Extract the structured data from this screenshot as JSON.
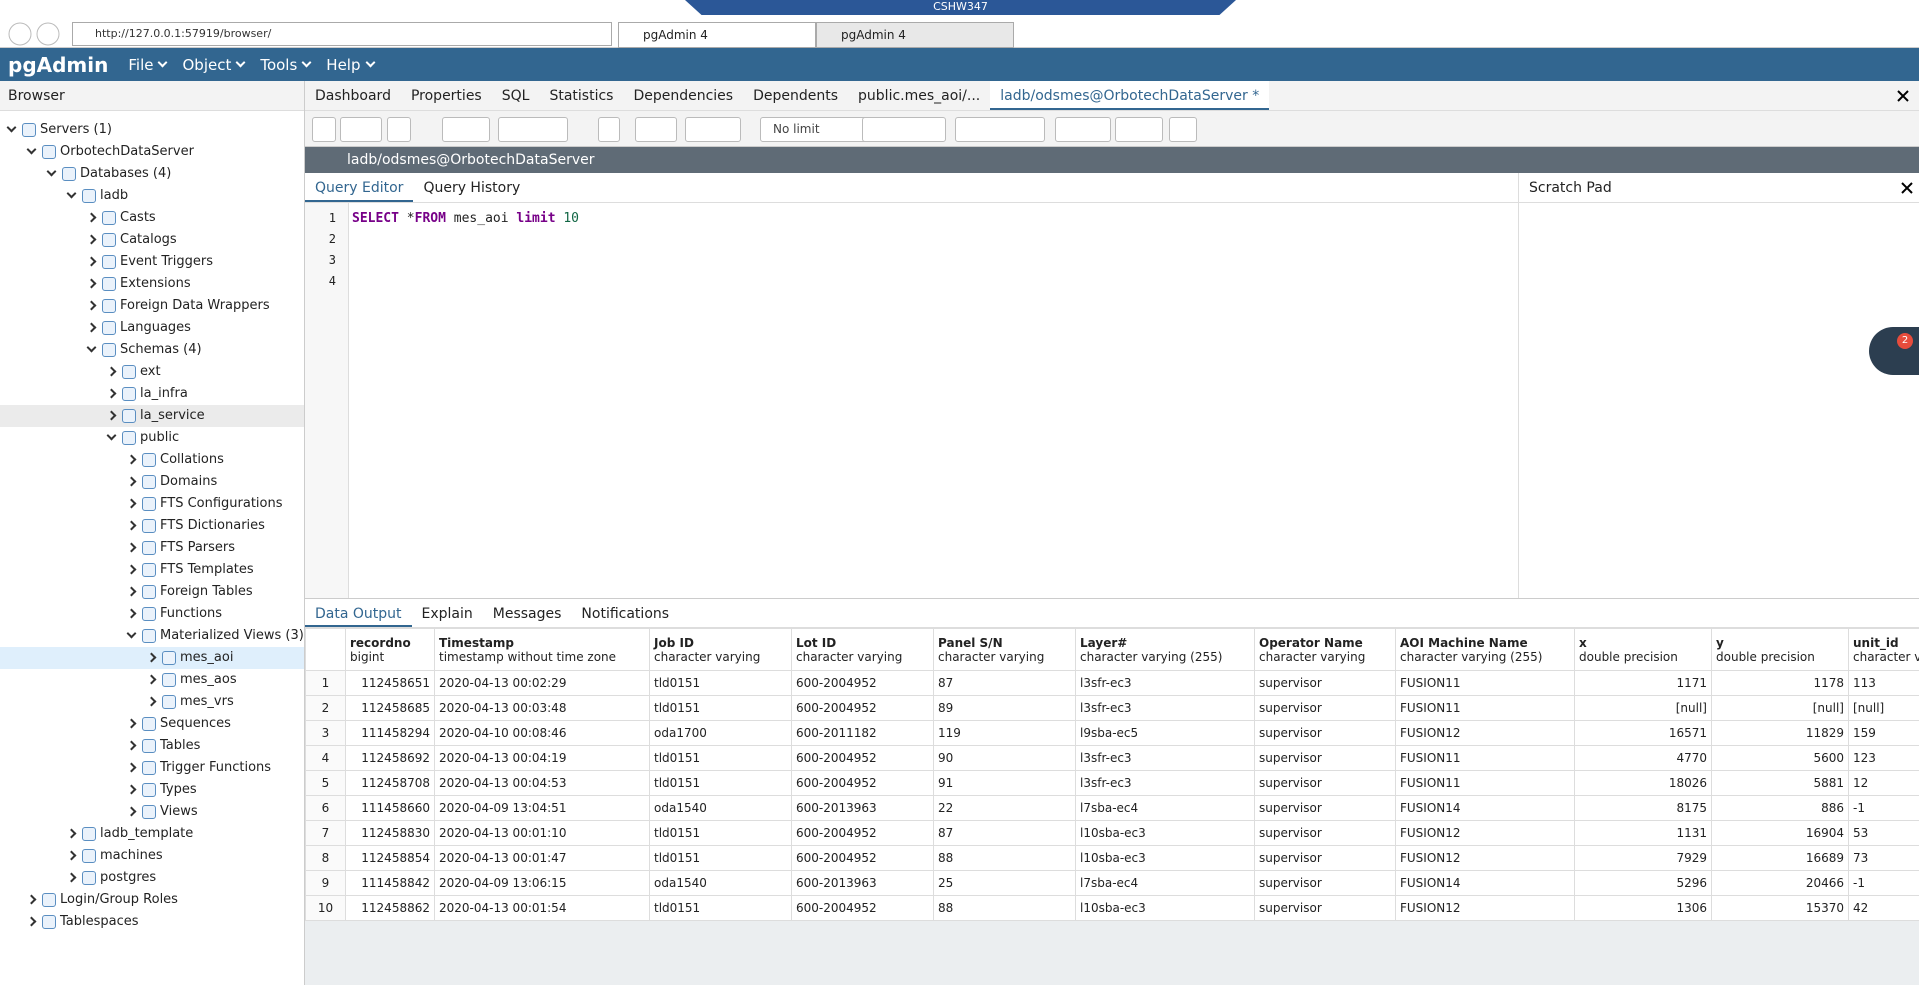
{
  "browser": {
    "window_title": "CSHW347",
    "url": "http://127.0.0.1:57919/browser/",
    "tabs": [
      {
        "label": "pgAdmin 4",
        "active": true
      },
      {
        "label": "pgAdmin 4",
        "active": false
      }
    ]
  },
  "app": {
    "logo": "pgAdmin",
    "menu": [
      "File",
      "Object",
      "Tools",
      "Help"
    ]
  },
  "sidebar": {
    "title": "Browser",
    "selected": "mes_aoi",
    "hovered": "la_service",
    "tree": [
      {
        "label": "Servers (1)",
        "depth": 0,
        "open": true
      },
      {
        "label": "OrbotechDataServer",
        "depth": 1,
        "open": true
      },
      {
        "label": "Databases (4)",
        "depth": 2,
        "open": true
      },
      {
        "label": "ladb",
        "depth": 3,
        "open": true
      },
      {
        "label": "Casts",
        "depth": 4,
        "open": false
      },
      {
        "label": "Catalogs",
        "depth": 4,
        "open": false
      },
      {
        "label": "Event Triggers",
        "depth": 4,
        "open": false
      },
      {
        "label": "Extensions",
        "depth": 4,
        "open": false
      },
      {
        "label": "Foreign Data Wrappers",
        "depth": 4,
        "open": false
      },
      {
        "label": "Languages",
        "depth": 4,
        "open": false
      },
      {
        "label": "Schemas (4)",
        "depth": 4,
        "open": true
      },
      {
        "label": "ext",
        "depth": 5,
        "open": false
      },
      {
        "label": "la_infra",
        "depth": 5,
        "open": false
      },
      {
        "label": "la_service",
        "depth": 5,
        "open": false
      },
      {
        "label": "public",
        "depth": 5,
        "open": true
      },
      {
        "label": "Collations",
        "depth": 6,
        "open": false
      },
      {
        "label": "Domains",
        "depth": 6,
        "open": false
      },
      {
        "label": "FTS Configurations",
        "depth": 6,
        "open": false
      },
      {
        "label": "FTS Dictionaries",
        "depth": 6,
        "open": false
      },
      {
        "label": "FTS Parsers",
        "depth": 6,
        "open": false
      },
      {
        "label": "FTS Templates",
        "depth": 6,
        "open": false
      },
      {
        "label": "Foreign Tables",
        "depth": 6,
        "open": false
      },
      {
        "label": "Functions",
        "depth": 6,
        "open": false
      },
      {
        "label": "Materialized Views (3)",
        "depth": 6,
        "open": true
      },
      {
        "label": "mes_aoi",
        "depth": 7,
        "open": false
      },
      {
        "label": "mes_aos",
        "depth": 7,
        "open": false
      },
      {
        "label": "mes_vrs",
        "depth": 7,
        "open": false
      },
      {
        "label": "Sequences",
        "depth": 6,
        "open": false
      },
      {
        "label": "Tables",
        "depth": 6,
        "open": false
      },
      {
        "label": "Trigger Functions",
        "depth": 6,
        "open": false
      },
      {
        "label": "Types",
        "depth": 6,
        "open": false
      },
      {
        "label": "Views",
        "depth": 6,
        "open": false
      },
      {
        "label": "ladb_template",
        "depth": 3,
        "open": false
      },
      {
        "label": "machines",
        "depth": 3,
        "open": false
      },
      {
        "label": "postgres",
        "depth": 3,
        "open": false
      },
      {
        "label": "Login/Group Roles",
        "depth": 1,
        "open": false
      },
      {
        "label": "Tablespaces",
        "depth": 1,
        "open": false
      }
    ]
  },
  "tabs": [
    {
      "label": "Dashboard",
      "active": false
    },
    {
      "label": "Properties",
      "active": false
    },
    {
      "label": "SQL",
      "active": false
    },
    {
      "label": "Statistics",
      "active": false
    },
    {
      "label": "Dependencies",
      "active": false
    },
    {
      "label": "Dependents",
      "active": false
    },
    {
      "label": "public.mes_aoi/...",
      "active": false
    },
    {
      "label": "ladb/odsmes@OrbotechDataServer *",
      "active": true
    }
  ],
  "toolbar": {
    "limit": "No limit"
  },
  "connection": "ladb/odsmes@OrbotechDataServer",
  "editor": {
    "tabs": [
      {
        "label": "Query Editor",
        "active": true
      },
      {
        "label": "Query History",
        "active": false
      }
    ],
    "line_numbers": [
      1,
      2,
      3,
      4
    ],
    "code": [
      {
        "text": "SELECT",
        "kind": "keyword"
      },
      {
        "text": " *",
        "kind": "plain"
      },
      {
        "text": "FROM",
        "kind": "keyword"
      },
      {
        "text": " mes_aoi ",
        "kind": "plain"
      },
      {
        "text": "limit",
        "kind": "keyword"
      },
      {
        "text": " 10",
        "kind": "number"
      }
    ]
  },
  "scratch_pad": "Scratch Pad",
  "notification_count": 2,
  "output": {
    "tabs": [
      {
        "label": "Data Output",
        "active": true
      },
      {
        "label": "Explain",
        "active": false
      },
      {
        "label": "Messages",
        "active": false
      },
      {
        "label": "Notifications",
        "active": false
      }
    ],
    "columns": [
      {
        "name": "recordno",
        "type": "bigint",
        "numeric": true
      },
      {
        "name": "Timestamp",
        "type": "timestamp without time zone",
        "numeric": false
      },
      {
        "name": "Job ID",
        "type": "character varying",
        "numeric": false
      },
      {
        "name": "Lot ID",
        "type": "character varying",
        "numeric": false
      },
      {
        "name": "Panel S/N",
        "type": "character varying",
        "numeric": false
      },
      {
        "name": "Layer#",
        "type": "character varying (255)",
        "numeric": false
      },
      {
        "name": "Operator Name",
        "type": "character varying",
        "numeric": false
      },
      {
        "name": "AOI Machine Name",
        "type": "character varying (255)",
        "numeric": false
      },
      {
        "name": "x",
        "type": "double precision",
        "numeric": true
      },
      {
        "name": "y",
        "type": "double precision",
        "numeric": true
      },
      {
        "name": "unit_id",
        "type": "character varying",
        "numeric": false
      }
    ],
    "row_numbers": [
      1,
      2,
      3,
      4,
      5,
      6,
      7,
      8,
      9,
      10
    ],
    "rows": [
      [
        112458651,
        "2020-04-13 00:02:29",
        "tld0151",
        "600-2004952",
        "87",
        "l3sfr-ec3",
        "supervisor",
        "FUSION11",
        1171,
        1178,
        "113"
      ],
      [
        112458685,
        "2020-04-13 00:03:48",
        "tld0151",
        "600-2004952",
        "89",
        "l3sfr-ec3",
        "supervisor",
        "FUSION11",
        "[null]",
        "[null]",
        "[null]"
      ],
      [
        111458294,
        "2020-04-10 00:08:46",
        "oda1700",
        "600-2011182",
        "119",
        "l9sba-ec5",
        "supervisor",
        "FUSION12",
        16571,
        11829,
        "159"
      ],
      [
        112458692,
        "2020-04-13 00:04:19",
        "tld0151",
        "600-2004952",
        "90",
        "l3sfr-ec3",
        "supervisor",
        "FUSION11",
        4770,
        5600,
        "123"
      ],
      [
        112458708,
        "2020-04-13 00:04:53",
        "tld0151",
        "600-2004952",
        "91",
        "l3sfr-ec3",
        "supervisor",
        "FUSION11",
        18026,
        5881,
        "12"
      ],
      [
        111458660,
        "2020-04-09 13:04:51",
        "oda1540",
        "600-2013963",
        "22",
        "l7sba-ec4",
        "supervisor",
        "FUSION14",
        8175,
        886,
        "-1"
      ],
      [
        112458830,
        "2020-04-13 00:01:10",
        "tld0151",
        "600-2004952",
        "87",
        "l10sba-ec3",
        "supervisor",
        "FUSION12",
        1131,
        16904,
        "53"
      ],
      [
        112458854,
        "2020-04-13 00:01:47",
        "tld0151",
        "600-2004952",
        "88",
        "l10sba-ec3",
        "supervisor",
        "FUSION12",
        7929,
        16689,
        "73"
      ],
      [
        111458842,
        "2020-04-09 13:06:15",
        "oda1540",
        "600-2013963",
        "25",
        "l7sba-ec4",
        "supervisor",
        "FUSION14",
        5296,
        20466,
        "-1"
      ],
      [
        112458862,
        "2020-04-13 00:01:54",
        "tld0151",
        "600-2004952",
        "88",
        "l10sba-ec3",
        "supervisor",
        "FUSION12",
        1306,
        15370,
        "42"
      ]
    ]
  }
}
